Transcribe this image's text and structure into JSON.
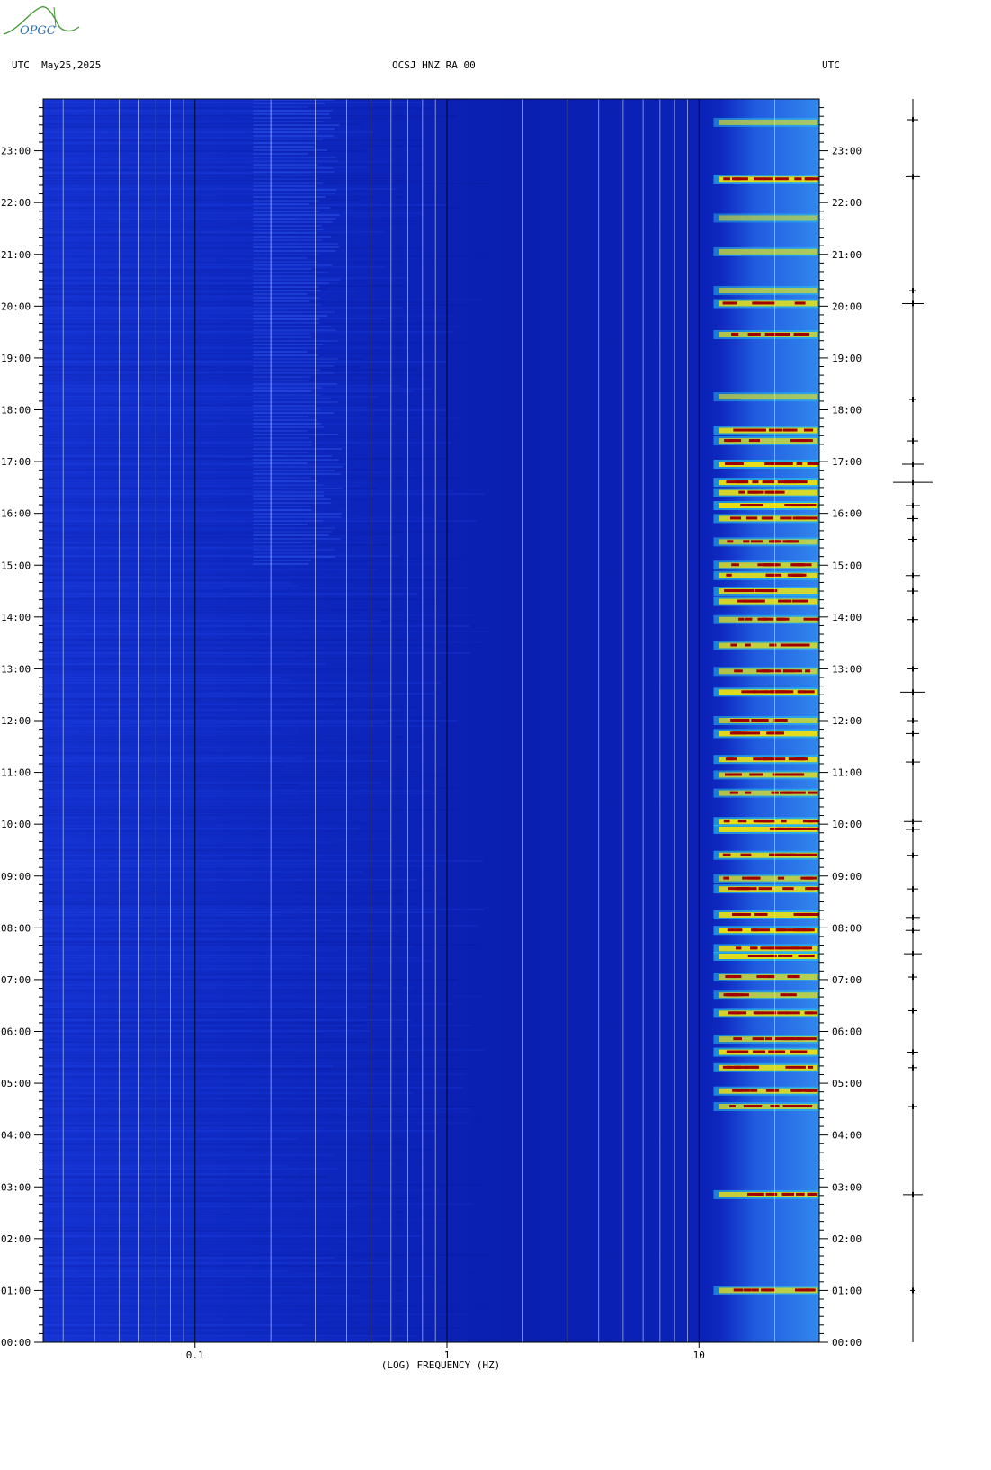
{
  "header": {
    "left_label": "UTC  May25,2025",
    "center_label": "OCSJ HNZ RA 00",
    "right_label": "UTC",
    "logo_text": "OPGC"
  },
  "colors": {
    "background_blue": "#0a1fb8",
    "hot_red": "#a00000",
    "hot_yellow": "#ffe400",
    "cyan": "#25d0e6",
    "frame": "#000000"
  },
  "chart_data": {
    "type": "heatmap",
    "title": "OCSJ HNZ RA 00",
    "xlabel": "(LOG) FREQUENCY (HZ)",
    "ylabel": "",
    "x_scale": "log",
    "xlim": [
      0.025,
      30
    ],
    "ylim": [
      0,
      24
    ],
    "x_ticks": [
      {
        "value": 0.1,
        "label": "0.1"
      },
      {
        "value": 1,
        "label": "1"
      },
      {
        "value": 10,
        "label": "10"
      }
    ],
    "y_ticks": [
      {
        "value": 0,
        "label": "00:00"
      },
      {
        "value": 1,
        "label": "01:00"
      },
      {
        "value": 2,
        "label": "02:00"
      },
      {
        "value": 3,
        "label": "03:00"
      },
      {
        "value": 4,
        "label": "04:00"
      },
      {
        "value": 5,
        "label": "05:00"
      },
      {
        "value": 6,
        "label": "06:00"
      },
      {
        "value": 7,
        "label": "07:00"
      },
      {
        "value": 8,
        "label": "08:00"
      },
      {
        "value": 9,
        "label": "09:00"
      },
      {
        "value": 10,
        "label": "10:00"
      },
      {
        "value": 11,
        "label": "11:00"
      },
      {
        "value": 12,
        "label": "12:00"
      },
      {
        "value": 13,
        "label": "13:00"
      },
      {
        "value": 14,
        "label": "14:00"
      },
      {
        "value": 15,
        "label": "15:00"
      },
      {
        "value": 16,
        "label": "16:00"
      },
      {
        "value": 17,
        "label": "17:00"
      },
      {
        "value": 18,
        "label": "18:00"
      },
      {
        "value": 19,
        "label": "19:00"
      },
      {
        "value": 20,
        "label": "20:00"
      },
      {
        "value": 21,
        "label": "21:00"
      },
      {
        "value": 22,
        "label": "22:00"
      },
      {
        "value": 23,
        "label": "23:00"
      }
    ],
    "freq_gridlines": [
      0.03,
      0.04,
      0.05,
      0.06,
      0.07,
      0.08,
      0.09,
      0.1,
      0.2,
      0.3,
      0.4,
      0.5,
      0.6,
      0.7,
      0.8,
      0.9,
      1,
      2,
      3,
      4,
      5,
      6,
      7,
      8,
      9,
      10,
      20
    ],
    "high_energy_band_hz": [
      12,
      30
    ],
    "intense_events": [
      {
        "time": 23.55,
        "intensity": 0.45
      },
      {
        "time": 22.45,
        "intensity": 0.9
      },
      {
        "time": 21.7,
        "intensity": 0.35
      },
      {
        "time": 21.05,
        "intensity": 0.5
      },
      {
        "time": 20.3,
        "intensity": 0.5
      },
      {
        "time": 20.05,
        "intensity": 0.8
      },
      {
        "time": 19.45,
        "intensity": 0.6
      },
      {
        "time": 18.25,
        "intensity": 0.45
      },
      {
        "time": 17.6,
        "intensity": 0.85
      },
      {
        "time": 17.4,
        "intensity": 0.6
      },
      {
        "time": 16.95,
        "intensity": 1.0
      },
      {
        "time": 16.6,
        "intensity": 0.95
      },
      {
        "time": 16.4,
        "intensity": 0.85
      },
      {
        "time": 16.15,
        "intensity": 1.0
      },
      {
        "time": 15.9,
        "intensity": 0.8
      },
      {
        "time": 15.45,
        "intensity": 0.6
      },
      {
        "time": 15.0,
        "intensity": 0.7
      },
      {
        "time": 14.8,
        "intensity": 0.85
      },
      {
        "time": 14.5,
        "intensity": 0.8
      },
      {
        "time": 14.3,
        "intensity": 0.85
      },
      {
        "time": 13.95,
        "intensity": 0.6
      },
      {
        "time": 13.45,
        "intensity": 0.7
      },
      {
        "time": 12.95,
        "intensity": 0.6
      },
      {
        "time": 12.55,
        "intensity": 0.95
      },
      {
        "time": 12.0,
        "intensity": 0.6
      },
      {
        "time": 11.75,
        "intensity": 0.95
      },
      {
        "time": 11.25,
        "intensity": 0.85
      },
      {
        "time": 10.95,
        "intensity": 0.7
      },
      {
        "time": 10.6,
        "intensity": 0.6
      },
      {
        "time": 10.05,
        "intensity": 1.0
      },
      {
        "time": 9.9,
        "intensity": 0.95
      },
      {
        "time": 9.4,
        "intensity": 0.85
      },
      {
        "time": 8.95,
        "intensity": 0.6
      },
      {
        "time": 8.75,
        "intensity": 0.8
      },
      {
        "time": 8.25,
        "intensity": 0.9
      },
      {
        "time": 7.95,
        "intensity": 1.0
      },
      {
        "time": 7.6,
        "intensity": 0.85
      },
      {
        "time": 7.45,
        "intensity": 0.95
      },
      {
        "time": 7.05,
        "intensity": 0.6
      },
      {
        "time": 6.7,
        "intensity": 0.6
      },
      {
        "time": 6.35,
        "intensity": 0.85
      },
      {
        "time": 5.85,
        "intensity": 0.6
      },
      {
        "time": 5.6,
        "intensity": 0.95
      },
      {
        "time": 5.3,
        "intensity": 0.85
      },
      {
        "time": 4.85,
        "intensity": 0.8
      },
      {
        "time": 4.55,
        "intensity": 0.6
      },
      {
        "time": 2.85,
        "intensity": 0.75
      },
      {
        "time": 1.0,
        "intensity": 0.65
      }
    ],
    "seismogram_events": [
      {
        "time": 23.6,
        "amplitude": 6
      },
      {
        "time": 22.5,
        "amplitude": 8
      },
      {
        "time": 20.3,
        "amplitude": 4
      },
      {
        "time": 20.05,
        "amplitude": 12
      },
      {
        "time": 18.2,
        "amplitude": 4
      },
      {
        "time": 17.4,
        "amplitude": 6
      },
      {
        "time": 16.95,
        "amplitude": 12
      },
      {
        "time": 16.6,
        "amplitude": 22
      },
      {
        "time": 16.15,
        "amplitude": 8
      },
      {
        "time": 15.9,
        "amplitude": 6
      },
      {
        "time": 15.5,
        "amplitude": 5
      },
      {
        "time": 14.8,
        "amplitude": 8
      },
      {
        "time": 14.5,
        "amplitude": 6
      },
      {
        "time": 13.95,
        "amplitude": 6
      },
      {
        "time": 13.0,
        "amplitude": 6
      },
      {
        "time": 12.55,
        "amplitude": 14
      },
      {
        "time": 12.0,
        "amplitude": 6
      },
      {
        "time": 11.75,
        "amplitude": 7
      },
      {
        "time": 11.2,
        "amplitude": 8
      },
      {
        "time": 10.05,
        "amplitude": 10
      },
      {
        "time": 9.9,
        "amplitude": 8
      },
      {
        "time": 9.4,
        "amplitude": 6
      },
      {
        "time": 8.75,
        "amplitude": 6
      },
      {
        "time": 8.2,
        "amplitude": 8
      },
      {
        "time": 7.95,
        "amplitude": 8
      },
      {
        "time": 7.5,
        "amplitude": 10
      },
      {
        "time": 7.05,
        "amplitude": 5
      },
      {
        "time": 6.4,
        "amplitude": 5
      },
      {
        "time": 5.6,
        "amplitude": 6
      },
      {
        "time": 5.3,
        "amplitude": 5
      },
      {
        "time": 4.55,
        "amplitude": 5
      },
      {
        "time": 2.85,
        "amplitude": 11
      },
      {
        "time": 1.0,
        "amplitude": 3
      }
    ],
    "grid": true,
    "legend": "none"
  }
}
